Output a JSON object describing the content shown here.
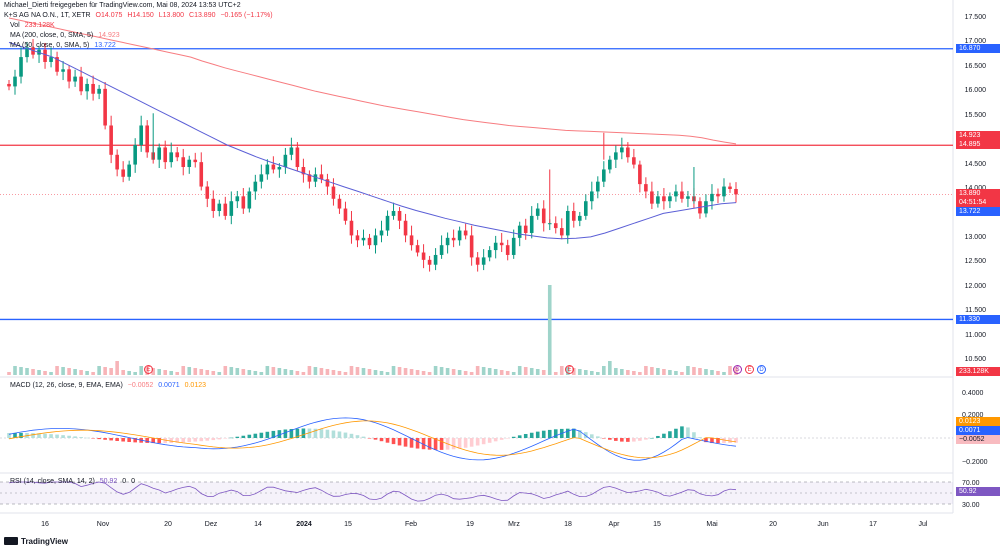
{
  "credit": "Michael_Dierti freigegeben für TradingView.com, Mai 08, 2024 13:53 UTC+2",
  "symbol": {
    "name": "K+S AG NA O.N., 1T, XETR",
    "o": "O14.075",
    "h": "H14.150",
    "l": "L13.800",
    "c": "C13.890",
    "chg": "−0.165 (−1.17%)"
  },
  "indicators": {
    "vol": "Vol",
    "vol_value": "233.128K",
    "ma200": "MA (200, close, 0, SMA, 5)",
    "ma200_value": "14.923",
    "ma50": "MA (50, close, 0, SMA, 5)",
    "ma50_value": "13.722",
    "macd": "MACD (12, 26, close, 9, EMA, EMA)",
    "macd_v1": "−0.0052",
    "macd_v2": "0.0071",
    "macd_v3": "0.0123",
    "rsi": "RSI (14, close, SMA, 14, 2)",
    "rsi_v1": "50.92",
    "rsi_v2": "0",
    "rsi_v3": "0"
  },
  "price_tags": {
    "h1": "16.870",
    "ma200": "14.923",
    "h2": "14.895",
    "last": "13.890",
    "countdown": "04:51:54",
    "ma50": "13.722",
    "h3": "11.330",
    "volume": "233.128K",
    "macd_signal": "0.0123",
    "macd_line": "0.0071",
    "macd_hist": "−0.0052",
    "rsi": "50.92"
  },
  "footer": "TradingView",
  "colors": {
    "up": "#089981",
    "down": "#f23645",
    "ma200": "#f77c80",
    "ma50": "#5b5fd6",
    "hline_red": "#f23645",
    "hline_blue": "#2962ff"
  },
  "chart_data": {
    "type": "candlestick",
    "title": "K+S AG NA O.N., 1T, XETR",
    "price_axis": {
      "min": 10.5,
      "max": 17.5,
      "ticks": [
        "17.500",
        "17.000",
        "16.500",
        "16.000",
        "15.500",
        "15.000",
        "14.500",
        "14.000",
        "13.500",
        "13.000",
        "12.500",
        "12.000",
        "11.500",
        "11.000",
        "10.500"
      ]
    },
    "x_ticks": [
      {
        "label": "16",
        "bold": false
      },
      {
        "label": "Nov",
        "bold": false
      },
      {
        "label": "20",
        "bold": false
      },
      {
        "label": "Dez",
        "bold": false
      },
      {
        "label": "14",
        "bold": false
      },
      {
        "label": "2024",
        "bold": true
      },
      {
        "label": "15",
        "bold": false
      },
      {
        "label": "Feb",
        "bold": false
      },
      {
        "label": "19",
        "bold": false
      },
      {
        "label": "Mrz",
        "bold": false
      },
      {
        "label": "18",
        "bold": false
      },
      {
        "label": "Apr",
        "bold": false
      },
      {
        "label": "15",
        "bold": false
      },
      {
        "label": "Mai",
        "bold": false
      },
      {
        "label": "20",
        "bold": false
      },
      {
        "label": "Jun",
        "bold": false
      },
      {
        "label": "17",
        "bold": false
      },
      {
        "label": "Jul",
        "bold": false
      }
    ],
    "horizontal_lines": [
      {
        "price": 16.87,
        "color": "blue"
      },
      {
        "price": 14.895,
        "color": "red"
      },
      {
        "price": 11.33,
        "color": "blue"
      }
    ],
    "closes": [
      16.1,
      16.3,
      16.7,
      16.9,
      16.75,
      16.85,
      16.6,
      16.7,
      16.4,
      16.45,
      16.2,
      16.3,
      16.0,
      16.15,
      15.95,
      16.05,
      15.3,
      14.7,
      14.4,
      14.25,
      14.5,
      14.9,
      15.3,
      14.75,
      14.6,
      14.85,
      14.55,
      14.75,
      14.65,
      14.45,
      14.6,
      14.55,
      14.05,
      13.8,
      13.55,
      13.7,
      13.45,
      13.75,
      13.85,
      13.6,
      13.95,
      14.15,
      14.3,
      14.5,
      14.4,
      14.45,
      14.7,
      14.85,
      14.45,
      14.3,
      14.15,
      14.3,
      14.2,
      14.05,
      13.8,
      13.6,
      13.35,
      13.05,
      12.95,
      13.0,
      12.85,
      13.05,
      13.15,
      13.45,
      13.55,
      13.35,
      13.05,
      12.85,
      12.7,
      12.55,
      12.45,
      12.65,
      12.85,
      13.0,
      12.95,
      13.15,
      13.05,
      12.6,
      12.45,
      12.6,
      12.75,
      12.9,
      12.85,
      12.65,
      13.0,
      13.25,
      13.1,
      13.45,
      13.6,
      13.3,
      13.3,
      13.2,
      13.05,
      13.55,
      13.35,
      13.45,
      13.75,
      13.95,
      14.15,
      14.4,
      14.6,
      14.75,
      14.85,
      14.65,
      14.5,
      14.1,
      13.95,
      13.7,
      13.85,
      13.75,
      13.85,
      13.95,
      13.8,
      13.85,
      13.75,
      13.5,
      13.75,
      13.9,
      13.85,
      14.05,
      14.0,
      13.89
    ],
    "ma200": [
      17.5,
      17.45,
      17.4,
      17.35,
      17.3,
      17.25,
      17.2,
      17.15,
      17.1,
      17.05,
      17.0,
      16.95,
      16.9,
      16.85,
      16.8,
      16.75,
      16.7,
      16.62,
      16.55,
      16.48,
      16.42,
      16.36,
      16.3,
      16.24,
      16.18,
      16.12,
      16.06,
      16.0,
      15.95,
      15.9,
      15.85,
      15.8,
      15.75,
      15.7,
      15.66,
      15.62,
      15.58,
      15.54,
      15.5,
      15.46,
      15.42,
      15.39,
      15.36,
      15.33,
      15.3,
      15.28,
      15.26,
      15.24,
      15.22,
      15.2,
      15.19,
      15.18,
      15.17,
      15.16,
      15.15,
      15.14,
      15.13,
      15.12,
      15.11,
      15.1,
      15.08,
      15.05,
      15.0,
      14.96,
      14.923
    ],
    "ma50": [
      17.0,
      16.9,
      16.8,
      16.7,
      16.55,
      16.4,
      16.25,
      16.1,
      15.95,
      15.8,
      15.65,
      15.5,
      15.35,
      15.2,
      15.05,
      14.9,
      14.78,
      14.66,
      14.55,
      14.45,
      14.35,
      14.25,
      14.15,
      14.05,
      13.95,
      13.85,
      13.75,
      13.65,
      13.56,
      13.48,
      13.4,
      13.33,
      13.26,
      13.2,
      13.14,
      13.08,
      13.04,
      13.0,
      12.98,
      12.99,
      13.02,
      13.1,
      13.2,
      13.3,
      13.4,
      13.5,
      13.55,
      13.6,
      13.65,
      13.7,
      13.722
    ],
    "volume_spike_index": 90
  }
}
